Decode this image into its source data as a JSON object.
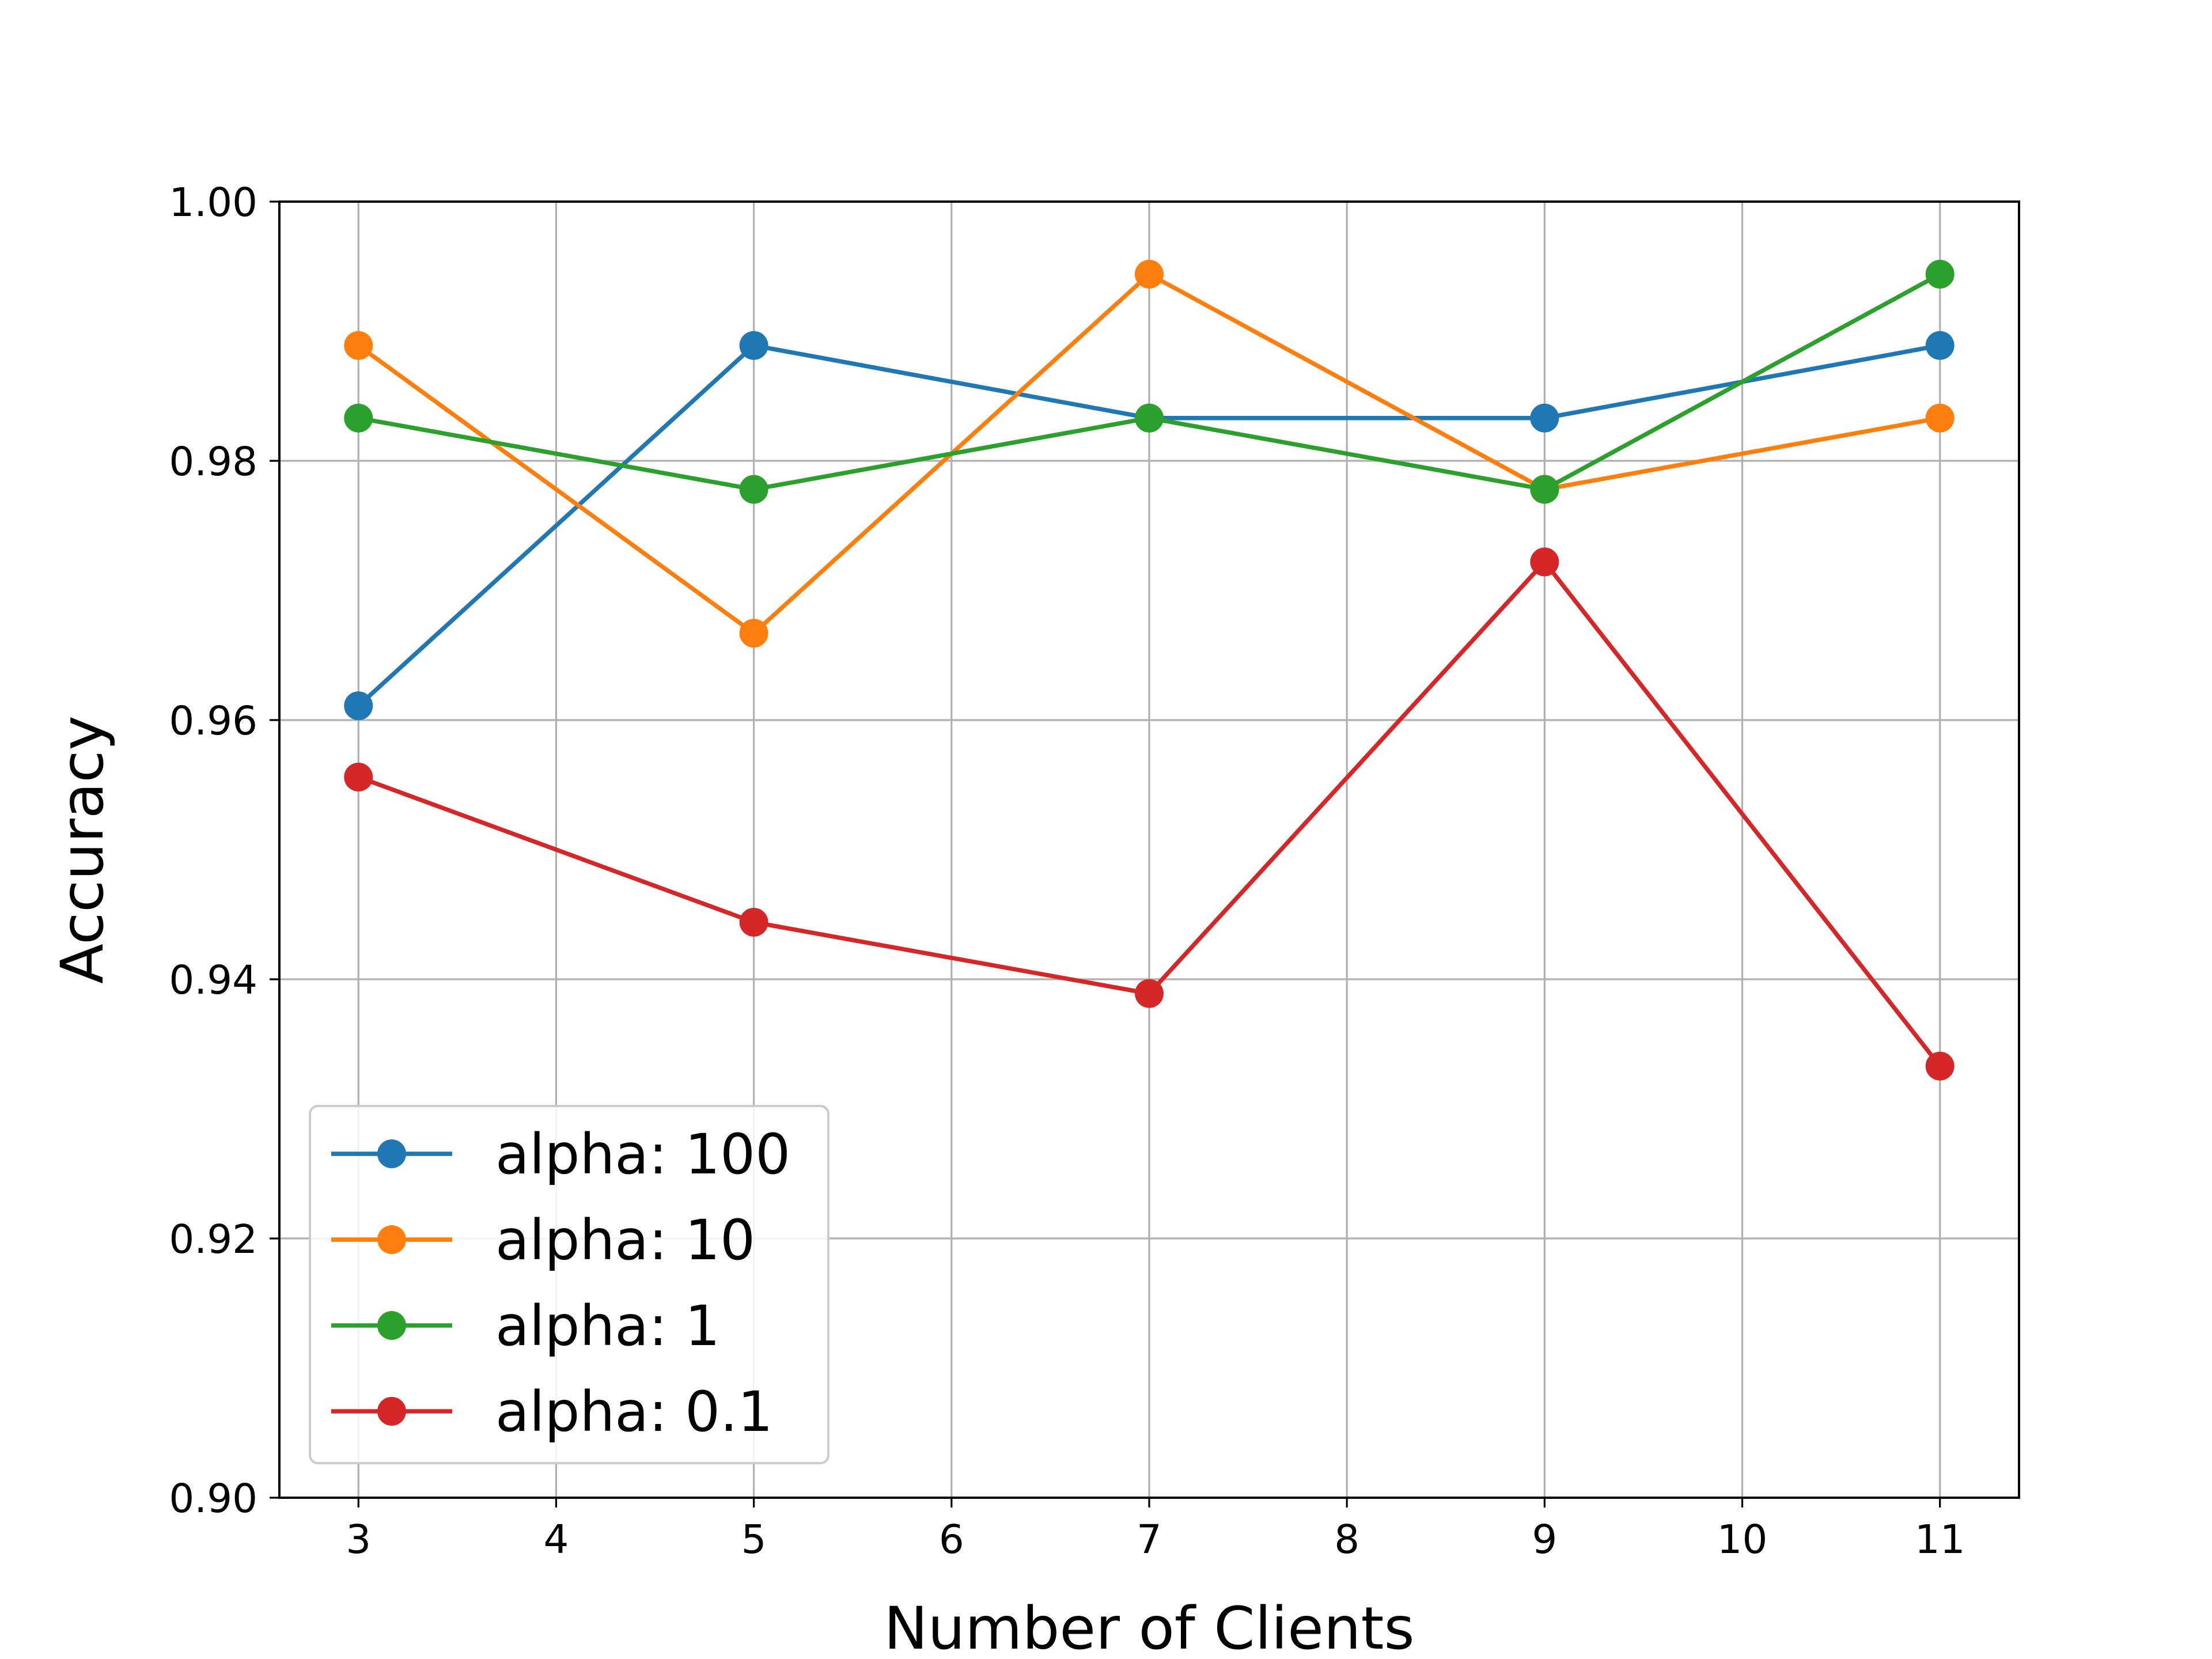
{
  "chart_data": {
    "type": "line",
    "title": "",
    "xlabel": "Number of Clients",
    "ylabel": "Accuracy",
    "xlim": [
      2.6,
      11.4
    ],
    "ylim": [
      0.9,
      1.0
    ],
    "xticks": [
      3,
      4,
      5,
      6,
      7,
      8,
      9,
      10,
      11
    ],
    "yticks": [
      0.9,
      0.92,
      0.94,
      0.96,
      0.98,
      1.0
    ],
    "ytick_labels": [
      "0.90",
      "0.92",
      "0.94",
      "0.96",
      "0.98",
      "1.00"
    ],
    "grid": true,
    "legend_position": "lower-left",
    "x": [
      3,
      5,
      7,
      9,
      11
    ],
    "series": [
      {
        "name": "alpha: 100",
        "color": "#1f77b4",
        "values": [
          0.9611,
          0.9889,
          0.9833,
          0.9833,
          0.9889
        ]
      },
      {
        "name": "alpha: 10",
        "color": "#ff7f0e",
        "values": [
          0.9889,
          0.9667,
          0.9944,
          0.9778,
          0.9833
        ]
      },
      {
        "name": "alpha: 1",
        "color": "#2ca02c",
        "values": [
          0.9833,
          0.9778,
          0.9833,
          0.9778,
          0.9944
        ]
      },
      {
        "name": "alpha: 0.1",
        "color": "#d62728",
        "values": [
          0.9556,
          0.9444,
          0.9389,
          0.9722,
          0.9333
        ]
      }
    ]
  }
}
